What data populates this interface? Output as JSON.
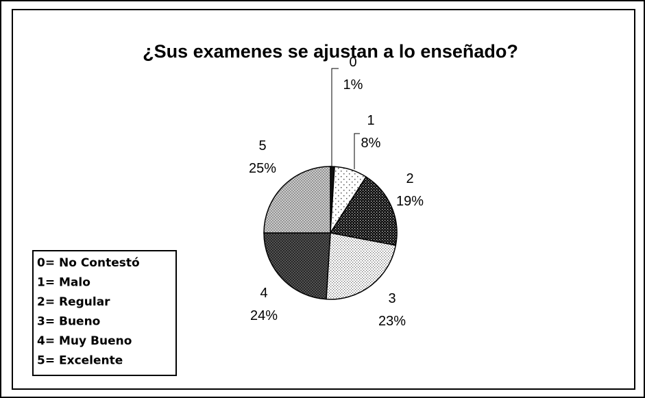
{
  "chart_data": {
    "type": "pie",
    "title": "¿Sus examenes se ajustan a lo enseñado?",
    "categories": [
      "0",
      "1",
      "2",
      "3",
      "4",
      "5"
    ],
    "values": [
      1,
      8,
      19,
      23,
      24,
      25
    ],
    "value_labels": [
      "1%",
      "8%",
      "19%",
      "23%",
      "24%",
      "25%"
    ],
    "legend": [
      "0= No Contestó",
      "1= Malo",
      "2= Regular",
      "3= Bueno",
      "4= Muy Bueno",
      "5= Excelente"
    ]
  }
}
